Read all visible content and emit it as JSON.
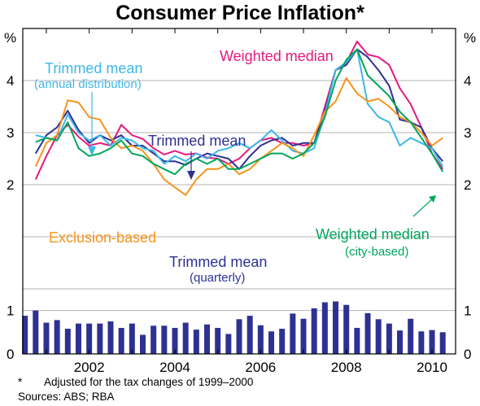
{
  "chart_data": {
    "type": "line",
    "title": "Consumer Price Inflation*",
    "y_unit_left": "%",
    "y_unit_right": "%",
    "ylim_top": [
      0,
      5
    ],
    "ylim_bottom": [
      0,
      1.5
    ],
    "top_y_ticks": [
      "2",
      "3",
      "4"
    ],
    "bottom_y_ticks": [
      "0",
      "1"
    ],
    "x_tick_labels": [
      "2002",
      "2004",
      "2006",
      "2008",
      "2010"
    ],
    "x_ticks": [
      2002,
      2004,
      2006,
      2008,
      2010
    ],
    "x_range": [
      2000.45,
      2010.55
    ],
    "grid": true,
    "series": [
      {
        "name": "Weighted median",
        "color": "#e6197e",
        "x": [
          2000.75,
          2001.0,
          2001.25,
          2001.5,
          2001.75,
          2002.0,
          2002.25,
          2002.5,
          2002.75,
          2003.0,
          2003.25,
          2003.5,
          2003.75,
          2004.0,
          2004.25,
          2004.5,
          2004.75,
          2005.0,
          2005.25,
          2005.5,
          2005.75,
          2006.0,
          2006.25,
          2006.5,
          2006.75,
          2007.0,
          2007.25,
          2007.5,
          2007.75,
          2008.0,
          2008.25,
          2008.5,
          2008.75,
          2009.0,
          2009.25,
          2009.5,
          2009.75,
          2010.0,
          2010.25
        ],
        "values": [
          2.1,
          2.55,
          2.95,
          3.15,
          2.92,
          2.75,
          2.8,
          2.75,
          3.15,
          2.95,
          2.88,
          2.7,
          2.58,
          2.65,
          2.58,
          2.6,
          2.52,
          2.5,
          2.4,
          2.5,
          2.7,
          2.85,
          2.9,
          2.8,
          2.8,
          2.75,
          2.8,
          3.5,
          4.2,
          4.35,
          4.75,
          4.5,
          4.45,
          4.3,
          3.85,
          3.55,
          3.1,
          2.6,
          2.3
        ]
      },
      {
        "name": "Trimmed mean",
        "color": "#2e3192",
        "x": [
          2000.75,
          2001.0,
          2001.25,
          2001.5,
          2001.75,
          2002.0,
          2002.25,
          2002.5,
          2002.75,
          2003.0,
          2003.25,
          2003.5,
          2003.75,
          2004.0,
          2004.25,
          2004.5,
          2004.75,
          2005.0,
          2005.25,
          2005.5,
          2005.75,
          2006.0,
          2006.25,
          2006.5,
          2006.75,
          2007.0,
          2007.25,
          2007.5,
          2007.75,
          2008.0,
          2008.25,
          2008.5,
          2008.75,
          2009.0,
          2009.25,
          2009.5,
          2009.75,
          2010.0,
          2010.25
        ],
        "values": [
          2.6,
          2.95,
          3.1,
          3.42,
          3.05,
          2.8,
          2.95,
          2.85,
          2.95,
          2.75,
          2.75,
          2.6,
          2.45,
          2.45,
          2.38,
          2.5,
          2.6,
          2.55,
          2.5,
          2.3,
          2.55,
          2.75,
          2.85,
          2.9,
          2.75,
          2.8,
          2.8,
          3.4,
          4.2,
          4.3,
          4.6,
          4.45,
          4.2,
          3.9,
          3.25,
          3.2,
          3.1,
          2.7,
          2.45
        ]
      },
      {
        "name": "Trimmed mean (annual distribution)",
        "color": "#3db8e8",
        "x": [
          2000.75,
          2001.0,
          2001.25,
          2001.5,
          2001.75,
          2002.0,
          2002.25,
          2002.5,
          2002.75,
          2003.0,
          2003.25,
          2003.5,
          2003.75,
          2004.0,
          2004.25,
          2004.5,
          2004.75,
          2005.0,
          2005.25,
          2005.5,
          2005.75,
          2006.0,
          2006.25,
          2006.5,
          2006.75,
          2007.0,
          2007.25,
          2007.5,
          2007.75,
          2008.0,
          2008.25,
          2008.5,
          2008.75,
          2009.0,
          2009.25,
          2009.5,
          2009.75,
          2010.0,
          2010.25
        ],
        "values": [
          2.95,
          2.9,
          2.85,
          3.35,
          3.0,
          2.85,
          2.95,
          2.75,
          2.9,
          2.85,
          2.7,
          2.65,
          2.4,
          2.55,
          2.45,
          2.6,
          2.5,
          2.65,
          2.7,
          2.8,
          2.7,
          2.85,
          3.05,
          2.85,
          2.65,
          2.6,
          2.7,
          3.35,
          4.2,
          4.35,
          4.6,
          3.55,
          3.3,
          3.2,
          2.75,
          2.9,
          2.8,
          2.7,
          2.35
        ]
      },
      {
        "name": "Exclusion-based",
        "color": "#f7941d",
        "x": [
          2000.75,
          2001.0,
          2001.25,
          2001.5,
          2001.75,
          2002.0,
          2002.25,
          2002.5,
          2002.75,
          2003.0,
          2003.25,
          2003.5,
          2003.75,
          2004.0,
          2004.25,
          2004.5,
          2004.75,
          2005.0,
          2005.25,
          2005.5,
          2005.75,
          2006.0,
          2006.25,
          2006.5,
          2006.75,
          2007.0,
          2007.25,
          2007.5,
          2007.75,
          2008.0,
          2008.25,
          2008.5,
          2008.75,
          2009.0,
          2009.25,
          2009.5,
          2009.75,
          2010.0,
          2010.25
        ],
        "values": [
          2.35,
          2.8,
          2.95,
          3.62,
          3.58,
          3.3,
          3.25,
          2.9,
          2.7,
          2.75,
          2.65,
          2.4,
          2.1,
          1.95,
          1.8,
          2.1,
          2.3,
          2.3,
          2.4,
          2.2,
          2.3,
          2.5,
          2.65,
          2.8,
          2.7,
          2.55,
          2.95,
          3.4,
          3.6,
          4.05,
          3.75,
          3.6,
          3.65,
          3.5,
          3.3,
          3.2,
          3.0,
          2.75,
          2.9
        ]
      },
      {
        "name": "Weighted median (city-based)",
        "color": "#00a65a",
        "x": [
          2000.75,
          2001.0,
          2001.25,
          2001.5,
          2001.75,
          2002.0,
          2002.25,
          2002.5,
          2002.75,
          2003.0,
          2003.25,
          2003.5,
          2003.75,
          2004.0,
          2004.25,
          2004.5,
          2004.75,
          2005.0,
          2005.25,
          2005.5,
          2005.75,
          2006.0,
          2006.25,
          2006.5,
          2006.75,
          2007.0,
          2007.25,
          2007.5,
          2007.75,
          2008.0,
          2008.25,
          2008.5,
          2008.75,
          2009.0,
          2009.25,
          2009.5,
          2009.75,
          2010.0,
          2010.25
        ],
        "values": [
          2.82,
          2.9,
          2.85,
          3.2,
          2.7,
          2.55,
          2.6,
          2.7,
          2.85,
          2.6,
          2.55,
          2.4,
          2.3,
          2.2,
          2.4,
          2.5,
          2.4,
          2.5,
          2.3,
          2.3,
          2.4,
          2.5,
          2.6,
          2.6,
          2.5,
          2.6,
          2.8,
          3.3,
          4.0,
          4.4,
          4.6,
          4.1,
          3.9,
          3.7,
          3.4,
          3.2,
          2.9,
          2.6,
          2.25
        ]
      }
    ],
    "bars": {
      "name": "Trimmed mean (quarterly)",
      "color": "#2e3192",
      "x": [
        2000.5,
        2000.75,
        2001.0,
        2001.25,
        2001.5,
        2001.75,
        2002.0,
        2002.25,
        2002.5,
        2002.75,
        2003.0,
        2003.25,
        2003.5,
        2003.75,
        2004.0,
        2004.25,
        2004.5,
        2004.75,
        2005.0,
        2005.25,
        2005.5,
        2005.75,
        2006.0,
        2006.25,
        2006.5,
        2006.75,
        2007.0,
        2007.25,
        2007.5,
        2007.75,
        2008.0,
        2008.25,
        2008.5,
        2008.75,
        2009.0,
        2009.25,
        2009.5,
        2009.75,
        2010.0,
        2010.25
      ],
      "values": [
        0.88,
        1.0,
        0.72,
        0.78,
        0.58,
        0.7,
        0.7,
        0.7,
        0.75,
        0.6,
        0.7,
        0.44,
        0.65,
        0.65,
        0.6,
        0.72,
        0.56,
        0.68,
        0.6,
        0.46,
        0.8,
        0.88,
        0.66,
        0.52,
        0.58,
        0.93,
        0.81,
        1.05,
        1.19,
        1.21,
        1.13,
        0.6,
        0.94,
        0.8,
        0.7,
        0.54,
        0.81,
        0.52,
        0.55,
        0.5
      ]
    },
    "annotations": {
      "weighted_median": "Weighted median",
      "trimmed_mean_annual_1": "Trimmed mean",
      "trimmed_mean_annual_2": "(annual distribution)",
      "trimmed_mean": "Trimmed mean",
      "exclusion_based": "Exclusion-based",
      "weighted_median_city_1": "Weighted median",
      "weighted_median_city_2": "(city-based)",
      "trimmed_mean_quarterly_1": "Trimmed mean",
      "trimmed_mean_quarterly_2": "(quarterly)"
    },
    "footnote": "Adjusted for the tax changes of 1999–2000",
    "footnote_mark": "*",
    "sources": "Sources: ABS; RBA"
  }
}
